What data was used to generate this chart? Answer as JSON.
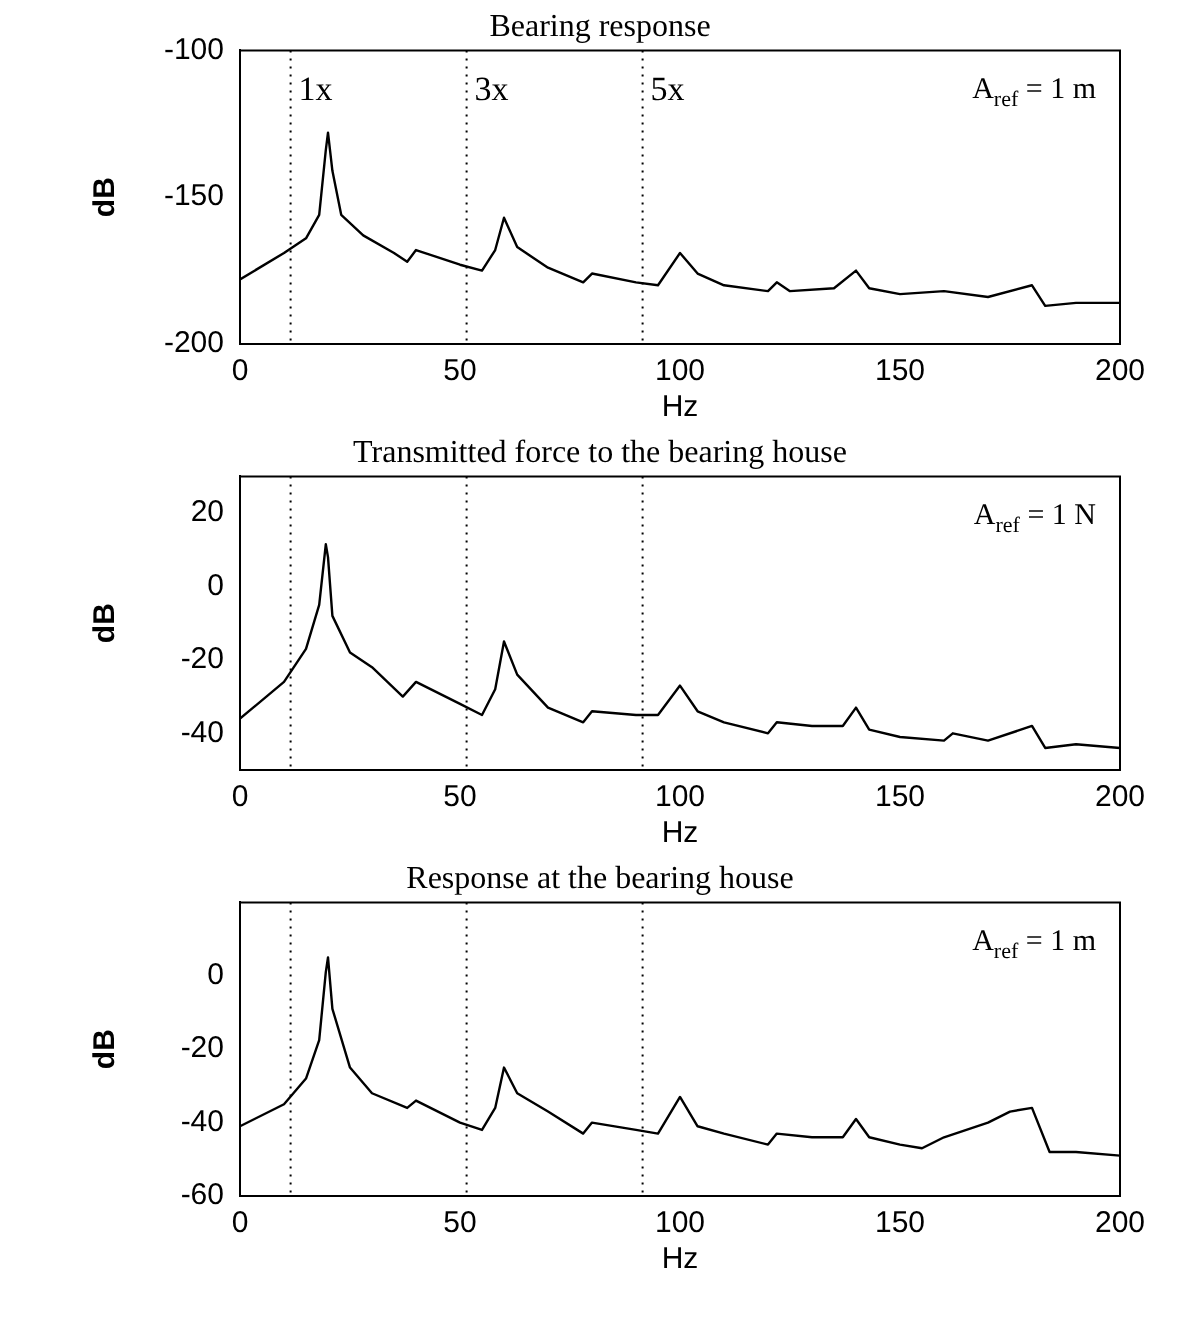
{
  "chart_data": [
    {
      "type": "line",
      "title": "Bearing response",
      "xlabel": "Hz",
      "ylabel": "dB",
      "color": "#000000",
      "marker": "none",
      "line_style": "solid",
      "grid": false,
      "legend": false,
      "x": [
        0,
        10,
        15,
        18,
        19.5,
        20,
        21,
        23,
        28,
        35,
        38,
        40,
        50,
        55,
        58,
        60,
        63,
        70,
        78,
        80,
        90,
        95,
        100,
        104,
        110,
        120,
        122,
        125,
        135,
        140,
        143,
        150,
        160,
        170,
        180,
        183,
        190,
        200
      ],
      "values": [
        -178,
        -169,
        -164,
        -156,
        -134,
        -128,
        -141,
        -156,
        -163,
        -169,
        -172,
        -168,
        -173,
        -175,
        -168,
        -157,
        -167,
        -174,
        -179,
        -176,
        -179,
        -180,
        -169,
        -176,
        -180,
        -182,
        -179,
        -182,
        -181,
        -175,
        -181,
        -183,
        -182,
        -184,
        -180,
        -187,
        -186,
        -186
      ],
      "xlim": [
        0,
        200
      ],
      "xticks": [
        0,
        50,
        100,
        150,
        200
      ],
      "ylim": [
        -200,
        -100
      ],
      "yticks": [
        -200,
        -150,
        -100
      ],
      "ref_lines": [
        {
          "axis": "x",
          "value": 11.5,
          "label": "1x",
          "line_style": "dotted"
        },
        {
          "axis": "x",
          "value": 51.5,
          "label": "3x",
          "line_style": "dotted"
        },
        {
          "axis": "x",
          "value": 91.5,
          "label": "5x",
          "line_style": "dotted"
        }
      ],
      "annotations": [
        "A$_{ref}$ = 1 m"
      ]
    },
    {
      "type": "line",
      "title": "Transmitted force to the bearing house",
      "xlabel": "Hz",
      "ylabel": "dB",
      "color": "#000000",
      "marker": "none",
      "line_style": "solid",
      "grid": false,
      "legend": false,
      "x": [
        0,
        10,
        15,
        18,
        19.5,
        20,
        21,
        25,
        30,
        37,
        40,
        50,
        55,
        58,
        60,
        63,
        70,
        78,
        80,
        90,
        95,
        100,
        104,
        110,
        120,
        122,
        130,
        137,
        140,
        143,
        150,
        160,
        162,
        170,
        180,
        183,
        190,
        200
      ],
      "values": [
        -36,
        -26,
        -17,
        -5,
        11.5,
        8,
        -8,
        -18,
        -22,
        -30,
        -26,
        -32,
        -35,
        -28,
        -15,
        -24,
        -33,
        -37,
        -34,
        -35,
        -35,
        -27,
        -34,
        -37,
        -40,
        -37,
        -38,
        -38,
        -33,
        -39,
        -41,
        -42,
        -40,
        -42,
        -38,
        -44,
        -43,
        -44
      ],
      "xlim": [
        0,
        200
      ],
      "xticks": [
        0,
        50,
        100,
        150,
        200
      ],
      "ylim": [
        -50,
        30
      ],
      "yticks": [
        -40,
        -20,
        0,
        20
      ],
      "ref_lines": [
        {
          "axis": "x",
          "value": 11.5,
          "line_style": "dotted"
        },
        {
          "axis": "x",
          "value": 51.5,
          "line_style": "dotted"
        },
        {
          "axis": "x",
          "value": 91.5,
          "line_style": "dotted"
        }
      ],
      "annotations": [
        "A$_{ref}$ = 1 N"
      ]
    },
    {
      "type": "line",
      "title": "Response at the bearing house",
      "xlabel": "Hz",
      "ylabel": "dB",
      "color": "#000000",
      "marker": "none",
      "line_style": "solid",
      "grid": false,
      "legend": false,
      "x": [
        0,
        10,
        15,
        18,
        19.5,
        20,
        21,
        25,
        30,
        38,
        40,
        50,
        55,
        58,
        60,
        63,
        70,
        78,
        80,
        90,
        95,
        100,
        104,
        110,
        120,
        122,
        130,
        137,
        140,
        143,
        150,
        155,
        160,
        170,
        175,
        180,
        184,
        190,
        200
      ],
      "values": [
        -41,
        -35,
        -28,
        -17.5,
        1,
        5,
        -9,
        -25,
        -32,
        -36,
        -34,
        -40,
        -42,
        -36,
        -25,
        -32,
        -37,
        -43,
        -40,
        -42,
        -43,
        -33,
        -41,
        -43,
        -46,
        -43,
        -44,
        -44,
        -39,
        -44,
        -46,
        -47,
        -44,
        -40,
        -37,
        -36,
        -48,
        -48,
        -49
      ],
      "xlim": [
        0,
        200
      ],
      "xticks": [
        0,
        50,
        100,
        150,
        200
      ],
      "ylim": [
        -60,
        20
      ],
      "yticks": [
        -60,
        -40,
        -20,
        0
      ],
      "ref_lines": [
        {
          "axis": "x",
          "value": 11.5,
          "line_style": "dotted"
        },
        {
          "axis": "x",
          "value": 51.5,
          "line_style": "dotted"
        },
        {
          "axis": "x",
          "value": 91.5,
          "line_style": "dotted"
        }
      ],
      "annotations": [
        "A$_{ref}$ = 1 m"
      ]
    }
  ]
}
